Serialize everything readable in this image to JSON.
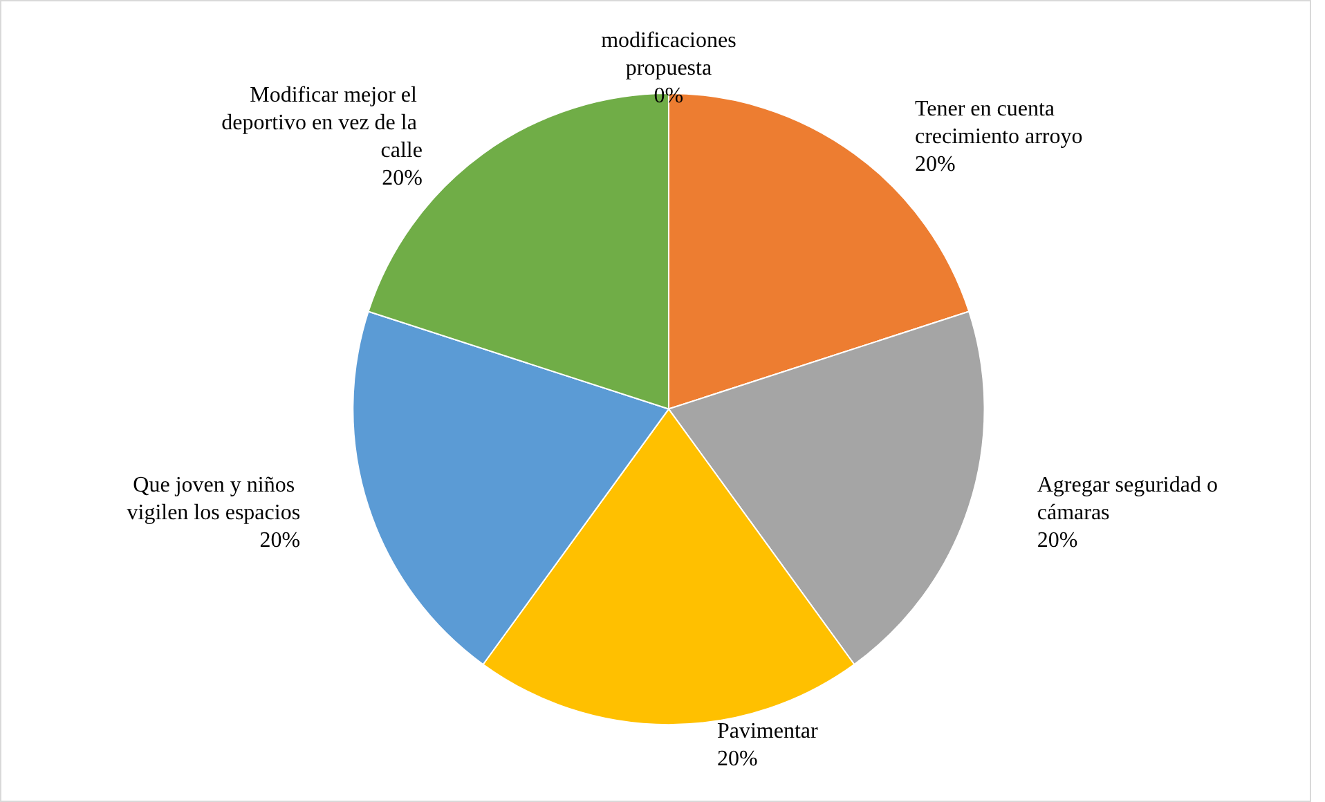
{
  "chart_data": {
    "type": "pie",
    "categories": [
      "modificaciones propuesta",
      "Tener en cuenta crecimiento arroyo",
      "Agregar seguridad o cámaras",
      "Pavimentar",
      "Que joven y niños vigilen los espacios",
      "Modificar mejor el deportivo en vez de la calle"
    ],
    "values": [
      0,
      20,
      20,
      20,
      20,
      20
    ],
    "value_labels": [
      "0%",
      "20%",
      "20%",
      "20%",
      "20%",
      "20%"
    ],
    "colors": [
      "#4472c4",
      "#ed7d31",
      "#a5a5a5",
      "#ffc000",
      "#5b9bd5",
      "#70ad47"
    ],
    "legend": false
  }
}
